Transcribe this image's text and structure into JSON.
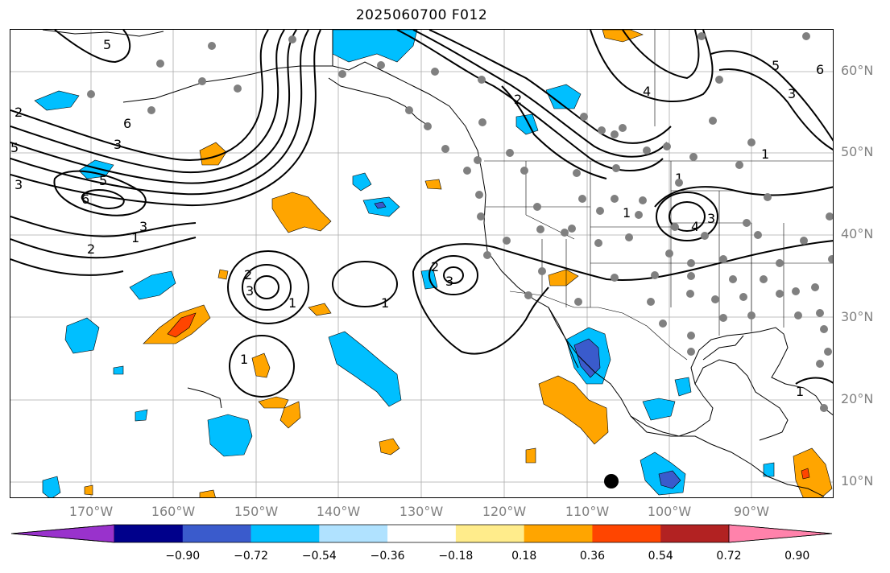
{
  "title": "2025060700 F012",
  "lat_labels": [
    "60°N",
    "50°N",
    "40°N",
    "30°N",
    "20°N",
    "10°N"
  ],
  "lon_labels": [
    "170°W",
    "160°W",
    "150°W",
    "140°W",
    "130°W",
    "120°W",
    "110°W",
    "100°W",
    "90°W"
  ],
  "colorbar": {
    "ticks": [
      "−0.90",
      "−0.72",
      "−0.54",
      "−0.36",
      "−0.18",
      "0.18",
      "0.36",
      "0.54",
      "0.72",
      "0.90"
    ],
    "colors": [
      "#9932CC",
      "#00008B",
      "#3A5BCC",
      "#00BFFF",
      "#B0E2FF",
      "#FFFFFF",
      "#FFEC8B",
      "#FFA500",
      "#FF4500",
      "#B22222",
      "#FF82AB"
    ]
  },
  "contour_labels": [
    "5",
    "2",
    "3",
    "5",
    "6",
    "3",
    "2",
    "1",
    "2",
    "3",
    "1",
    "1",
    "2",
    "3",
    "3",
    "1",
    "4",
    "5",
    "6",
    "3",
    "5",
    "6",
    "1",
    "1",
    "2",
    "3",
    "4",
    "1",
    "1"
  ],
  "shading_colors": {
    "light_blue": "#B0E2FF",
    "blue": "#00BFFF",
    "dark_blue": "#3A5BCC",
    "yellow": "#FFEC8B",
    "orange": "#FFA500",
    "red": "#FF4500"
  }
}
